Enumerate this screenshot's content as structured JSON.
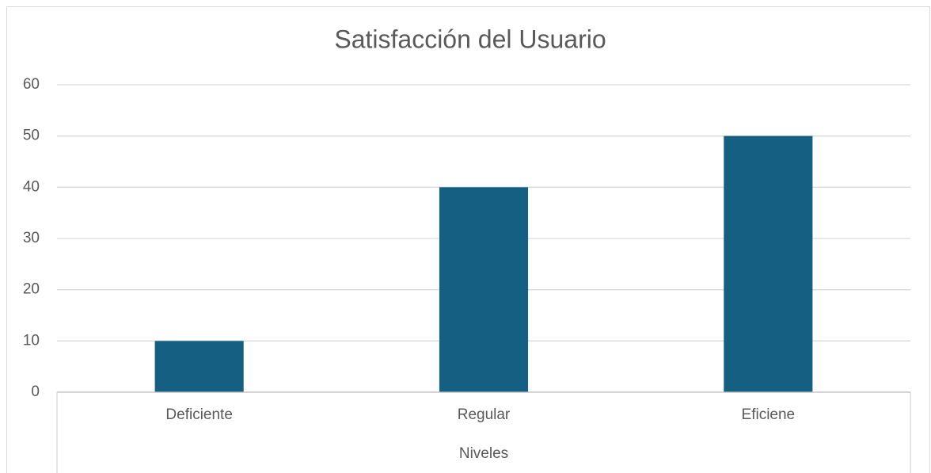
{
  "chart_data": {
    "type": "bar",
    "title": "Satisfacción del Usuario",
    "categories": [
      "Deficiente",
      "Regular",
      "Eficiene"
    ],
    "values": [
      10,
      40,
      50
    ],
    "color": "#156082",
    "x_label": "Niveles",
    "ylim": [
      0,
      60
    ],
    "yticks": [
      0,
      10,
      20,
      30,
      40,
      50,
      60
    ],
    "grid": true
  }
}
